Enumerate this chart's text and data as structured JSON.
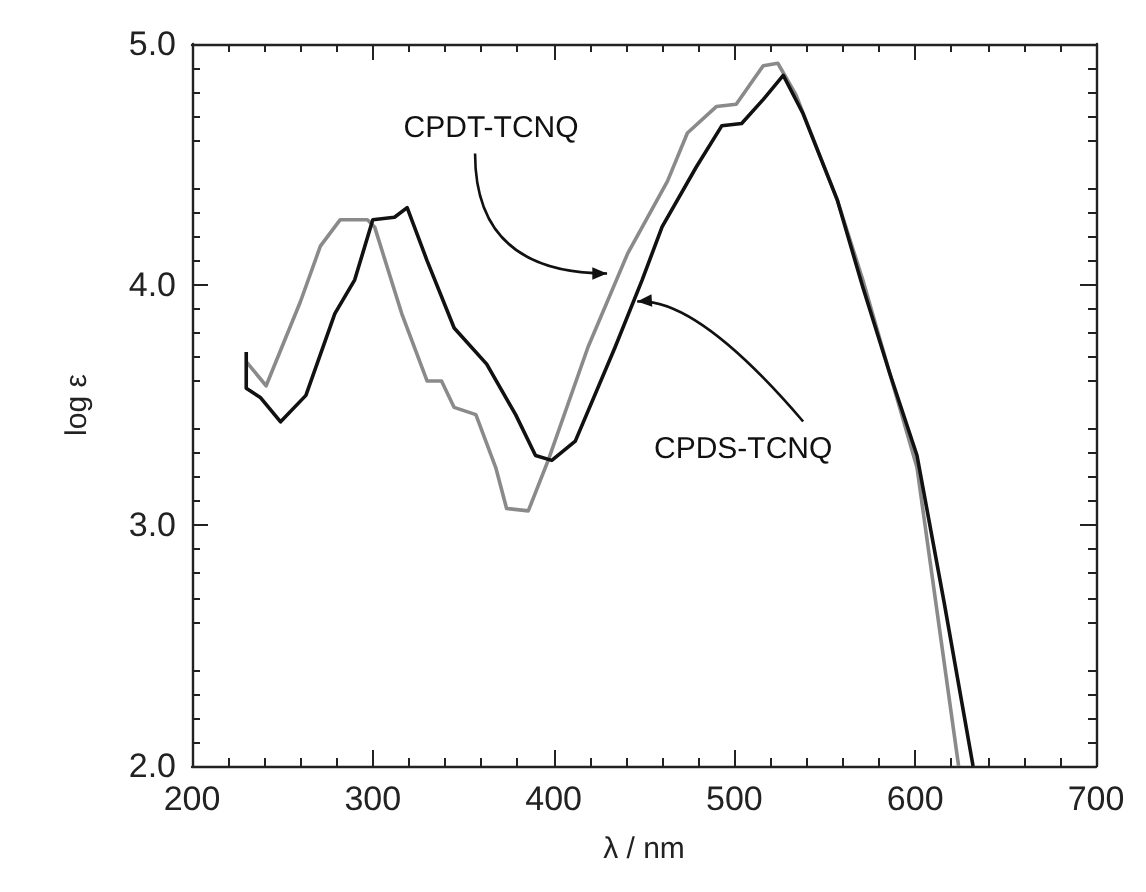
{
  "chart_data": {
    "type": "line",
    "xlabel": "λ / nm",
    "ylabel": "log ε",
    "xlim": [
      200,
      700
    ],
    "xticks": [
      200,
      300,
      400,
      500,
      600,
      700
    ],
    "ylim": [
      2,
      5
    ],
    "yticks": [
      {
        "value": 2,
        "label": "2.0"
      },
      {
        "value": 3,
        "label": "3.0"
      },
      {
        "value": 4,
        "label": "4.0"
      },
      {
        "value": 5,
        "label": "5.0"
      }
    ],
    "grid": false,
    "marker": "none",
    "line_style": "solid",
    "series": [
      {
        "color": "#8a8a8a",
        "x": [
          230,
          241,
          260,
          271,
          282,
          297,
          301,
          316,
          330,
          338,
          345,
          357,
          368,
          374,
          386,
          397,
          419,
          441,
          463,
          474,
          490,
          501,
          516,
          524,
          534,
          557,
          571,
          586,
          601,
          624
        ],
        "values": [
          3.68,
          3.58,
          3.93,
          4.16,
          4.27,
          4.27,
          4.24,
          3.88,
          3.6,
          3.6,
          3.49,
          3.46,
          3.24,
          3.07,
          3.06,
          3.27,
          3.74,
          4.13,
          4.43,
          4.63,
          4.74,
          4.75,
          4.91,
          4.92,
          4.79,
          4.35,
          4.02,
          3.63,
          3.24,
          2
        ]
      },
      {
        "color": "#111111",
        "x": [
          230,
          230,
          238,
          249,
          263,
          279,
          290,
          300,
          312,
          319,
          330,
          345,
          363,
          379,
          390,
          399,
          412,
          434,
          449,
          460,
          479,
          493,
          504,
          516,
          527,
          538,
          557,
          571,
          586,
          601,
          616,
          632
        ],
        "values": [
          3.72,
          3.57,
          3.53,
          3.43,
          3.54,
          3.88,
          4.02,
          4.27,
          4.28,
          4.32,
          4.1,
          3.82,
          3.67,
          3.46,
          3.29,
          3.27,
          3.35,
          3.74,
          4.02,
          4.24,
          4.49,
          4.66,
          4.67,
          4.77,
          4.87,
          4.71,
          4.35,
          3.99,
          3.63,
          3.29,
          2.68,
          2
        ]
      }
    ],
    "annotations": [
      {
        "text": "CPDT-TCNQ",
        "x": 434,
        "y": 4.03
      },
      {
        "text": "CPDS-TCNQ",
        "x": 444,
        "y": 3.93
      }
    ]
  }
}
